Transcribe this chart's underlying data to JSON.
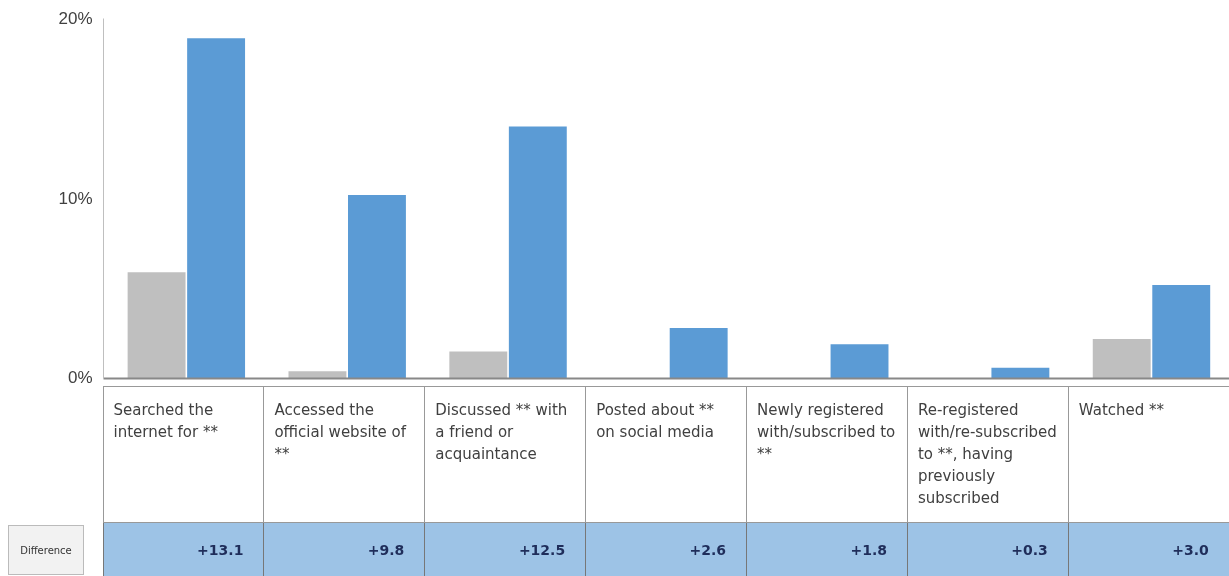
{
  "chart_data": {
    "type": "bar",
    "categories": [
      "Searched the internet for **",
      "Accessed the official website of **",
      "Discussed ** with a friend or acquaintance",
      "Posted about ** on social media",
      "Newly registered with/subscribed to **",
      "Re-registered with/re-subscribed to **, having previously subscribed",
      "Watched **"
    ],
    "series": [
      {
        "color": "#bfbfbf",
        "values": [
          5.9,
          0.4,
          1.5,
          0,
          0,
          0,
          2.2
        ]
      },
      {
        "color": "#5b9bd5",
        "values": [
          18.9,
          10.2,
          14.0,
          2.8,
          1.9,
          0.6,
          5.2
        ]
      }
    ],
    "ylim": [
      0,
      20
    ],
    "yticks": [
      {
        "value": 0,
        "label": "0%"
      },
      {
        "value": 10,
        "label": "10%"
      },
      {
        "value": 20,
        "label": "20%"
      }
    ],
    "grid": false,
    "annotations": [
      "Difference",
      "+13.1",
      "+9.8",
      "+12.5",
      "+2.6",
      "+1.8",
      "+0.3",
      "+3.0"
    ]
  }
}
